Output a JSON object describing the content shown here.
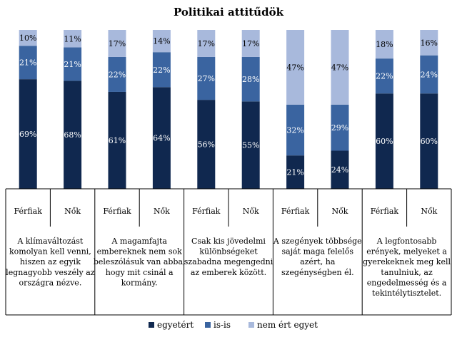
{
  "chart_data": {
    "type": "bar",
    "stacked": true,
    "percent": true,
    "title": "Politikai attitűdök",
    "ylim": [
      0,
      100
    ],
    "groups": [
      {
        "statement": [
          "A klímaváltozást",
          "komolyan kell venni,",
          "hiszen az egyik",
          "legnagyobb veszély az",
          "országra nézve."
        ]
      },
      {
        "statement": [
          "A magamfajta",
          "embereknek nem sok",
          "beleszólásuk van abba,",
          "hogy mit csinál a",
          "kormány."
        ]
      },
      {
        "statement": [
          "Csak kis jövedelmi",
          "különbségeket",
          "szabadna megengedni",
          "az emberek között."
        ]
      },
      {
        "statement": [
          "A szegények többsége",
          "saját maga felelős",
          "azért, ha",
          "szegénységben él."
        ]
      },
      {
        "statement": [
          "A legfontosabb",
          "erények, melyeket a",
          "gyerekeknek meg kell",
          "tanulniuk, az",
          "engedelmesség és a",
          "tekintélytisztelet."
        ]
      }
    ],
    "categories": [
      "Férfiak",
      "Nők",
      "Férfiak",
      "Nők",
      "Férfiak",
      "Nők",
      "Férfiak",
      "Nők",
      "Férfiak",
      "Nők"
    ],
    "series": [
      {
        "name": "egyetért",
        "color": "#10284f",
        "values": [
          69,
          68,
          61,
          64,
          56,
          55,
          21,
          24,
          60,
          60
        ]
      },
      {
        "name": "is-is",
        "color": "#3a64a0",
        "values": [
          21,
          21,
          22,
          22,
          27,
          28,
          32,
          29,
          22,
          24
        ]
      },
      {
        "name": "nem ért egyet",
        "color": "#a8b9dc",
        "values": [
          10,
          11,
          17,
          14,
          17,
          17,
          47,
          47,
          18,
          16
        ]
      }
    ],
    "labels": [
      [
        "69%",
        "68%",
        "61%",
        "64%",
        "56%",
        "55%",
        "21%",
        "24%",
        "60%",
        "60%"
      ],
      [
        "21%",
        "21%",
        "22%",
        "22%",
        "27%",
        "28%",
        "32%",
        "29%",
        "22%",
        "24%"
      ],
      [
        "10%",
        "11%",
        "17%",
        "14%",
        "17%",
        "17%",
        "47%",
        "47%",
        "18%",
        "16%"
      ]
    ],
    "legend_position": "bottom"
  }
}
